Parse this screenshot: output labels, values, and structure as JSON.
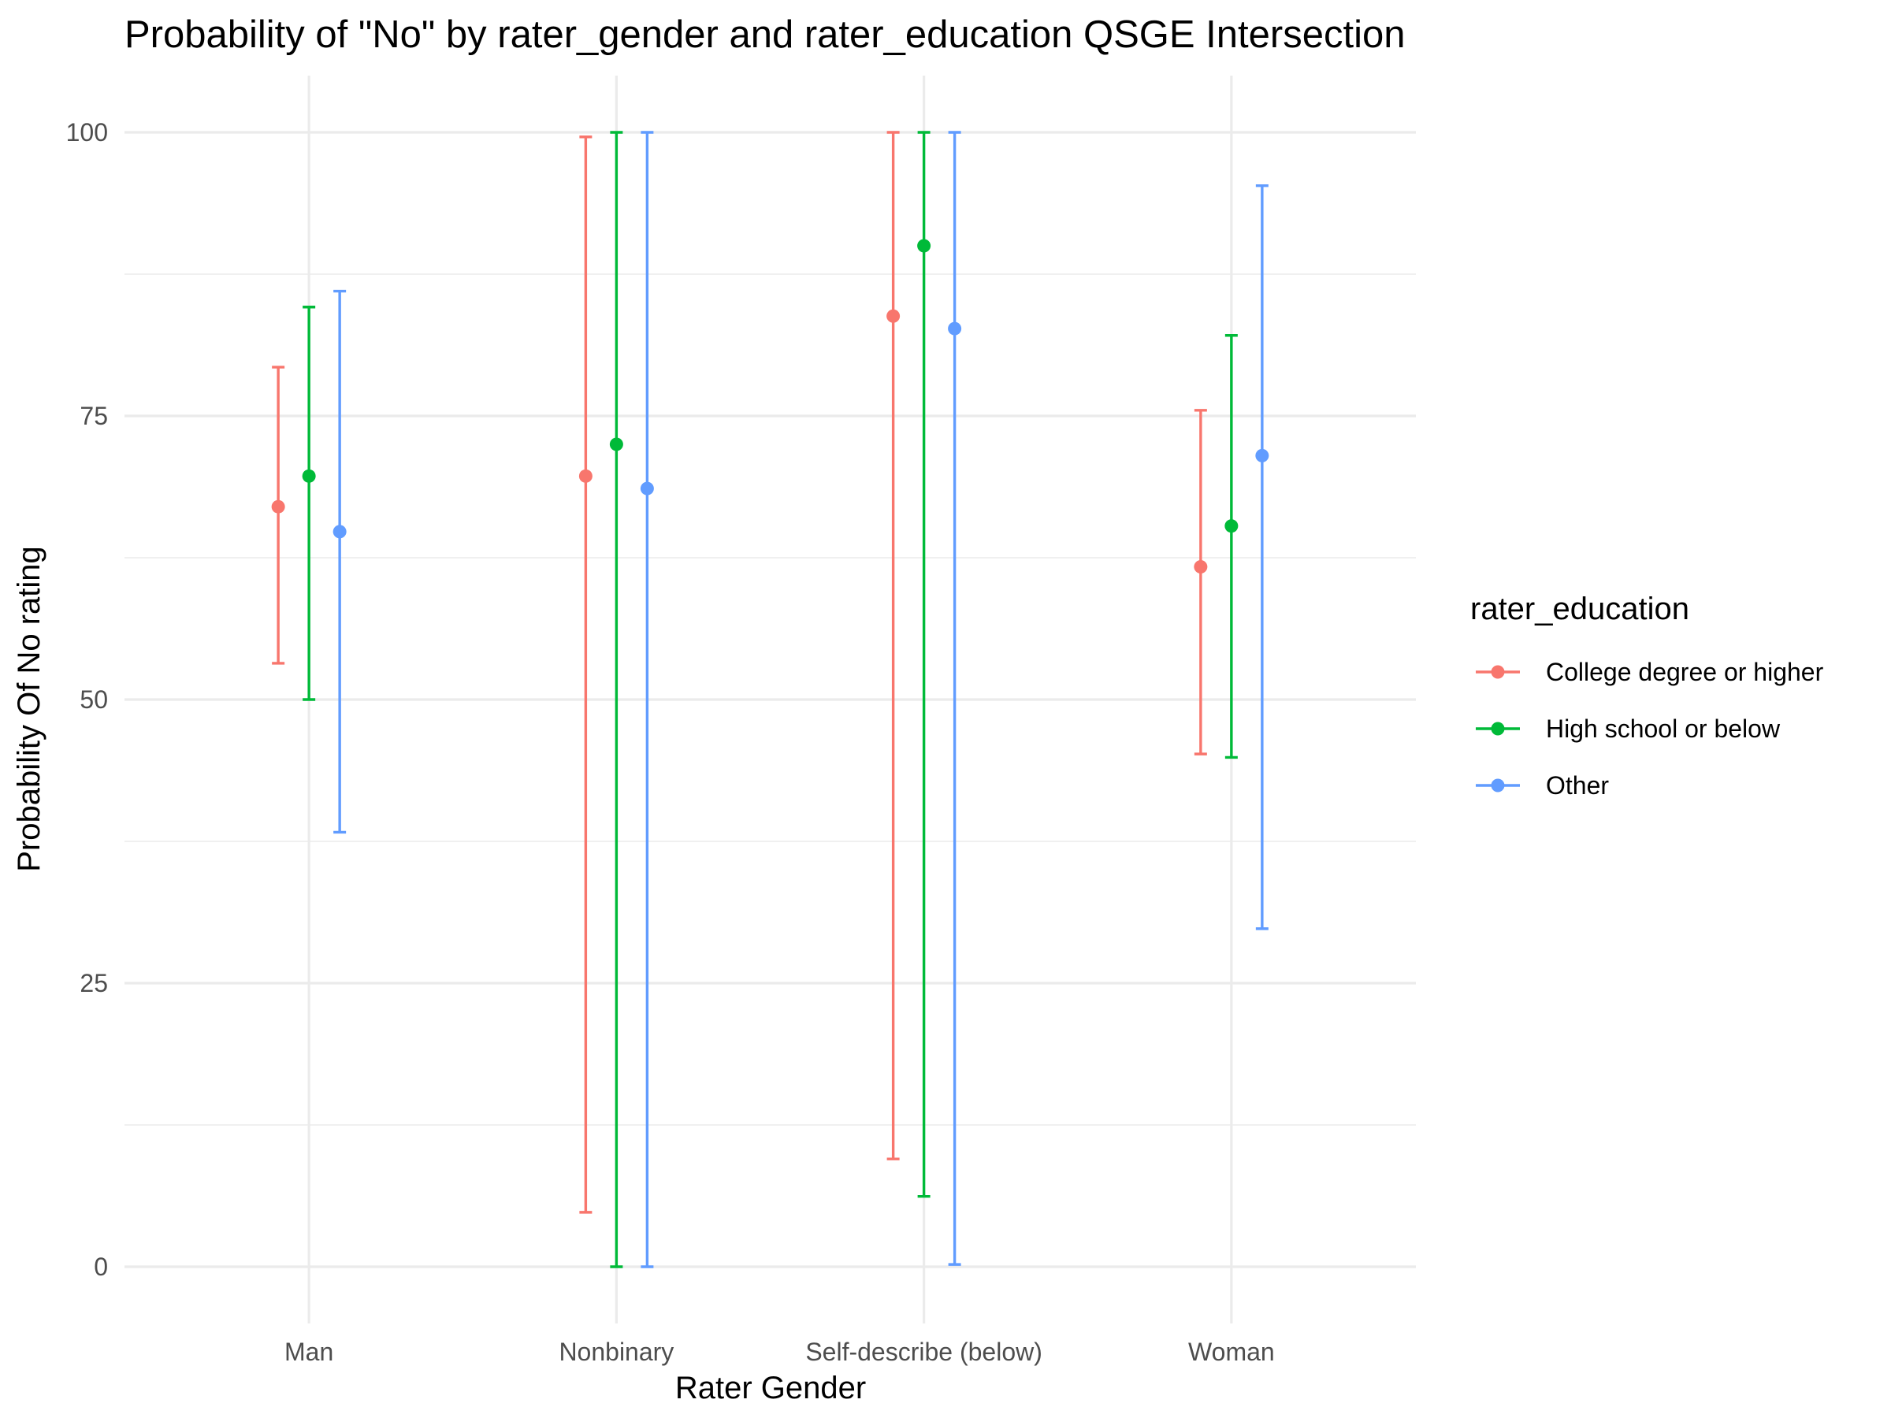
{
  "chart_data": {
    "type": "errorbar",
    "title": "Probability of \"No\" by rater_gender and  rater_education  QSGE Intersection",
    "xlabel": "Rater Gender",
    "ylabel": "Probability Of No rating",
    "categories": [
      "Man",
      "Nonbinary",
      "Self-describe (below)",
      "Woman"
    ],
    "ylim": [
      -5,
      105
    ],
    "yticks": [
      0,
      25,
      50,
      75,
      100
    ],
    "grid": true,
    "legend": {
      "title": "rater_education",
      "position": "right"
    },
    "series": [
      {
        "name": "College degree or higher",
        "color": "#F8766D",
        "estimate": [
          67.0,
          69.7,
          83.8,
          61.7
        ],
        "lower": [
          53.2,
          4.8,
          9.5,
          45.2
        ],
        "upper": [
          79.3,
          99.6,
          100,
          75.5
        ]
      },
      {
        "name": "High school or below",
        "color": "#00BA38",
        "estimate": [
          69.7,
          72.5,
          90.0,
          65.3
        ],
        "lower": [
          50.0,
          0,
          6.2,
          44.9
        ],
        "upper": [
          84.6,
          100,
          100,
          82.1
        ]
      },
      {
        "name": "Other",
        "color": "#619CFF",
        "estimate": [
          64.8,
          68.6,
          82.7,
          71.5
        ],
        "lower": [
          38.3,
          0,
          0.2,
          29.8
        ],
        "upper": [
          86.0,
          100,
          100,
          95.3
        ]
      }
    ]
  }
}
